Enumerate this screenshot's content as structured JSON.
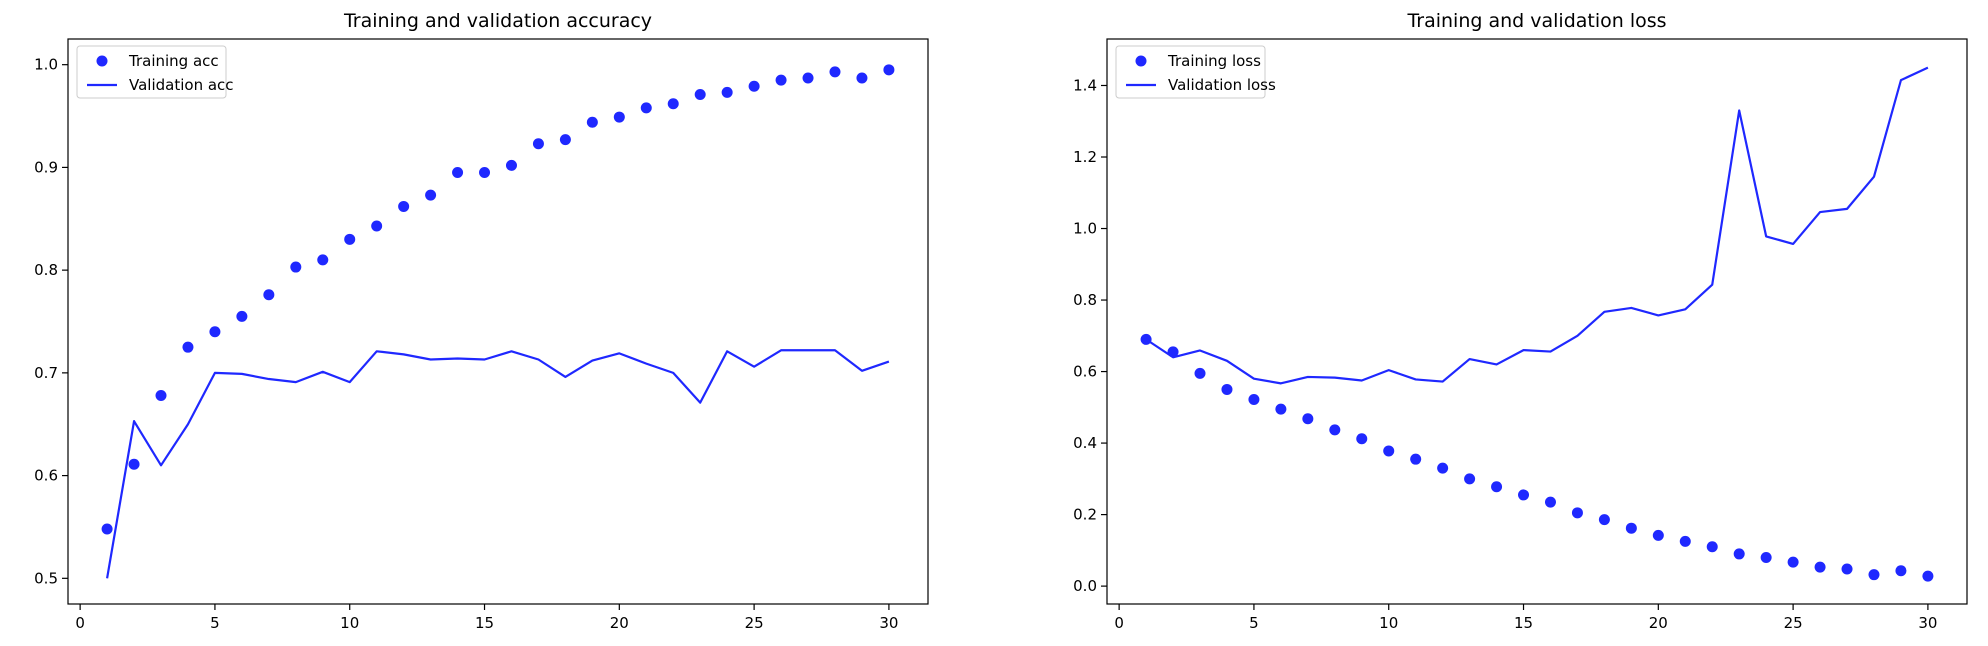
{
  "chart_data": [
    {
      "type": "line",
      "title": "Training and validation accuracy",
      "xlabel": "",
      "ylabel": "",
      "xlim": [
        -0.45,
        31.45
      ],
      "ylim": [
        0.475,
        1.025
      ],
      "xticks": [
        0,
        5,
        10,
        15,
        20,
        25,
        30
      ],
      "yticks": [
        0.5,
        0.6,
        0.7,
        0.8,
        0.9,
        1.0
      ],
      "ytick_labels": [
        "0.5",
        "0.6",
        "0.7",
        "0.8",
        "0.9",
        "1.0"
      ],
      "legend_position": "top-left",
      "color": "#1f28ff",
      "x": [
        1,
        2,
        3,
        4,
        5,
        6,
        7,
        8,
        9,
        10,
        11,
        12,
        13,
        14,
        15,
        16,
        17,
        18,
        19,
        20,
        21,
        22,
        23,
        24,
        25,
        26,
        27,
        28,
        29,
        30
      ],
      "series": [
        {
          "name": "Training acc",
          "style": "markers",
          "values": [
            0.548,
            0.611,
            0.678,
            0.725,
            0.74,
            0.755,
            0.776,
            0.803,
            0.81,
            0.83,
            0.843,
            0.862,
            0.873,
            0.895,
            0.895,
            0.902,
            0.923,
            0.927,
            0.944,
            0.949,
            0.958,
            0.962,
            0.971,
            0.973,
            0.979,
            0.985,
            0.987,
            0.993,
            0.987,
            0.995
          ]
        },
        {
          "name": "Validation acc",
          "style": "line",
          "values": [
            0.5,
            0.653,
            0.61,
            0.65,
            0.7,
            0.699,
            0.694,
            0.691,
            0.701,
            0.691,
            0.721,
            0.718,
            0.713,
            0.714,
            0.713,
            0.721,
            0.713,
            0.696,
            0.712,
            0.719,
            0.709,
            0.7,
            0.671,
            0.721,
            0.706,
            0.722,
            0.722,
            0.722,
            0.702,
            0.711
          ]
        }
      ]
    },
    {
      "type": "line",
      "title": "Training and validation loss",
      "xlabel": "",
      "ylabel": "",
      "xlim": [
        -0.45,
        31.45
      ],
      "ylim": [
        -0.05,
        1.53
      ],
      "xticks": [
        0,
        5,
        10,
        15,
        20,
        25,
        30
      ],
      "yticks": [
        0.0,
        0.2,
        0.4,
        0.6,
        0.8,
        1.0,
        1.2,
        1.4
      ],
      "ytick_labels": [
        "0.0",
        "0.2",
        "0.4",
        "0.6",
        "0.8",
        "1.0",
        "1.2",
        "1.4"
      ],
      "legend_position": "top-left",
      "color": "#1f28ff",
      "x": [
        1,
        2,
        3,
        4,
        5,
        6,
        7,
        8,
        9,
        10,
        11,
        12,
        13,
        14,
        15,
        16,
        17,
        18,
        19,
        20,
        21,
        22,
        23,
        24,
        25,
        26,
        27,
        28,
        29,
        30
      ],
      "series": [
        {
          "name": "Training loss",
          "style": "markers",
          "values": [
            0.69,
            0.655,
            0.595,
            0.55,
            0.522,
            0.495,
            0.468,
            0.437,
            0.412,
            0.378,
            0.355,
            0.33,
            0.3,
            0.278,
            0.255,
            0.235,
            0.205,
            0.186,
            0.162,
            0.142,
            0.125,
            0.11,
            0.09,
            0.08,
            0.067,
            0.053,
            0.048,
            0.032,
            0.043,
            0.028
          ]
        },
        {
          "name": "Validation loss",
          "style": "line",
          "values": [
            0.69,
            0.64,
            0.659,
            0.63,
            0.58,
            0.567,
            0.585,
            0.583,
            0.575,
            0.604,
            0.578,
            0.572,
            0.635,
            0.62,
            0.66,
            0.656,
            0.7,
            0.767,
            0.778,
            0.757,
            0.774,
            0.843,
            1.33,
            0.978,
            0.957,
            1.046,
            1.055,
            1.145,
            1.415,
            1.45
          ]
        }
      ]
    }
  ]
}
